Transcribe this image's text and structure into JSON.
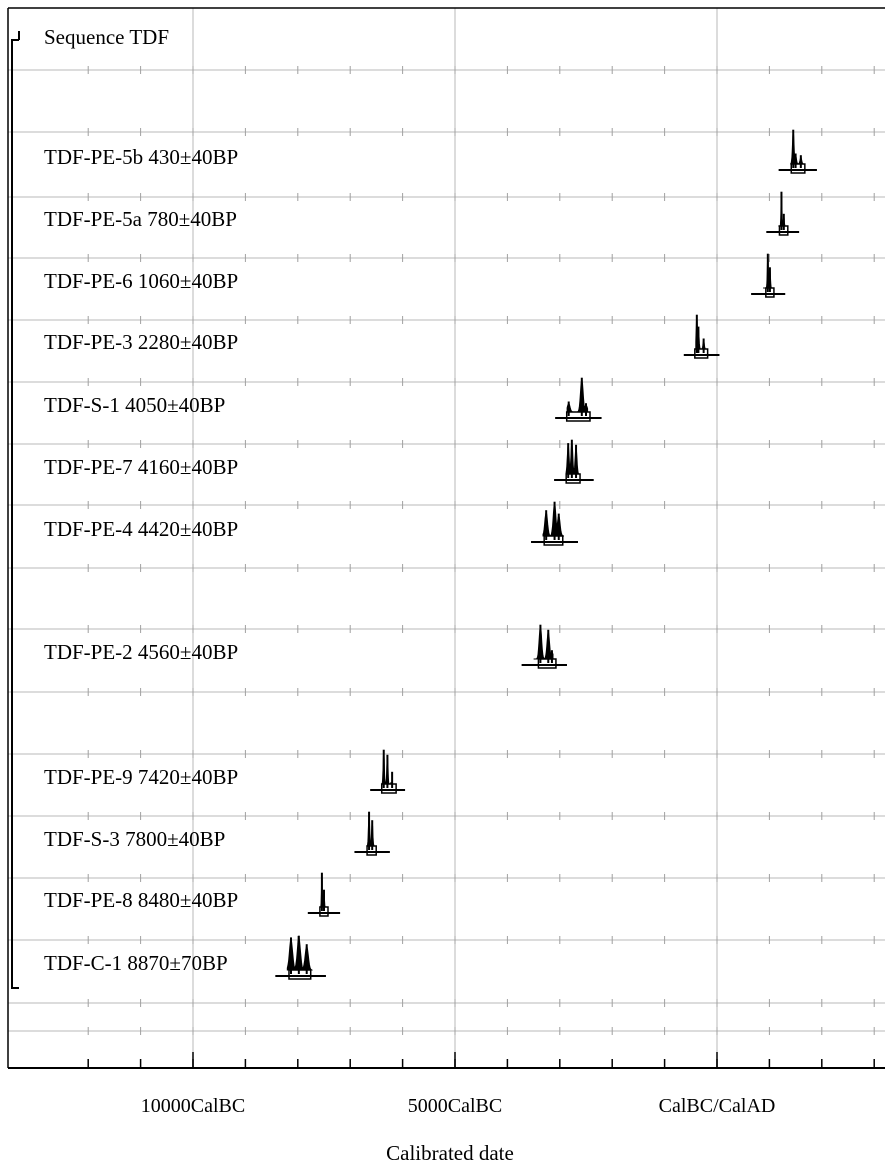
{
  "chart_data": {
    "type": "oxcal-multiplot",
    "title": "Sequence TDF",
    "xlabel": "Calibrated date",
    "x_unit": "CalBC/CalAD",
    "xlim": [
      -12000,
      3200
    ],
    "major_ticks": [
      {
        "value": -10000,
        "label": "10000CalBC"
      },
      {
        "value": -5000,
        "label": "5000CalBC"
      },
      {
        "value": 0,
        "label": "CalBC/CalAD"
      }
    ],
    "minor_tick_step": 1000,
    "samples": [
      {
        "label": "TDF-PE-5b  430±40BP",
        "group": 1,
        "range": [
          1405,
          1640
        ],
        "peaks": [
          {
            "year": 1455,
            "h": 0.95
          },
          {
            "year": 1500,
            "h": 0.25
          },
          {
            "year": 1600,
            "h": 0.2
          }
        ]
      },
      {
        "label": "TDF-PE-5a  780±40BP",
        "group": 1,
        "range": [
          1170,
          1300
        ],
        "peaks": [
          {
            "year": 1230,
            "h": 0.95
          },
          {
            "year": 1275,
            "h": 0.3
          }
        ]
      },
      {
        "label": "TDF-PE-6  1060±40BP",
        "group": 1,
        "range": [
          880,
          1035
        ],
        "peaks": [
          {
            "year": 970,
            "h": 0.95
          },
          {
            "year": 1010,
            "h": 0.55
          }
        ]
      },
      {
        "label": "TDF-PE-3  2280±40BP",
        "group": 1,
        "range": [
          -405,
          -220
        ],
        "peaks": [
          {
            "year": -385,
            "h": 0.95
          },
          {
            "year": -355,
            "h": 0.6
          },
          {
            "year": -255,
            "h": 0.25
          }
        ]
      },
      {
        "label": "TDF-S-1  4050±40BP",
        "group": 1,
        "range": [
          -2860,
          -2470
        ],
        "peaks": [
          {
            "year": -2830,
            "h": 0.25
          },
          {
            "year": -2580,
            "h": 0.95
          },
          {
            "year": -2500,
            "h": 0.2
          }
        ]
      },
      {
        "label": "TDF-PE-7  4160±40BP",
        "group": 1,
        "range": [
          -2880,
          -2620
        ],
        "peaks": [
          {
            "year": -2840,
            "h": 0.85
          },
          {
            "year": -2770,
            "h": 0.95
          },
          {
            "year": -2690,
            "h": 0.8
          }
        ]
      },
      {
        "label": "TDF-PE-4  4420±40BP",
        "group": 1,
        "range": [
          -3320,
          -2920
        ],
        "peaks": [
          {
            "year": -3260,
            "h": 0.7
          },
          {
            "year": -3100,
            "h": 0.95
          },
          {
            "year": -3020,
            "h": 0.6
          }
        ]
      },
      {
        "label": "TDF-PE-2  4560±40BP",
        "group": 2,
        "range": [
          -3500,
          -3130
        ],
        "peaks": [
          {
            "year": -3370,
            "h": 0.95
          },
          {
            "year": -3220,
            "h": 0.8
          },
          {
            "year": -3150,
            "h": 0.2
          }
        ]
      },
      {
        "label": "TDF-PE-9  7420±40BP",
        "group": 3,
        "range": [
          -6390,
          -6220
        ],
        "peaks": [
          {
            "year": -6360,
            "h": 0.95
          },
          {
            "year": -6290,
            "h": 0.8
          },
          {
            "year": -6200,
            "h": 0.3
          }
        ]
      },
      {
        "label": "TDF-S-3  7800±40BP",
        "group": 3,
        "range": [
          -6690,
          -6510
        ],
        "peaks": [
          {
            "year": -6640,
            "h": 0.95
          },
          {
            "year": -6580,
            "h": 0.7
          }
        ]
      },
      {
        "label": "TDF-PE-8  8480±40BP",
        "group": 3,
        "range": [
          -7580,
          -7460
        ],
        "peaks": [
          {
            "year": -7540,
            "h": 0.95
          },
          {
            "year": -7500,
            "h": 0.45
          }
        ]
      },
      {
        "label": "TDF-C-1  8870±70BP",
        "group": 3,
        "range": [
          -8200,
          -7730
        ],
        "peaks": [
          {
            "year": -8130,
            "h": 0.9
          },
          {
            "year": -7980,
            "h": 0.95
          },
          {
            "year": -7830,
            "h": 0.7
          }
        ]
      }
    ]
  }
}
